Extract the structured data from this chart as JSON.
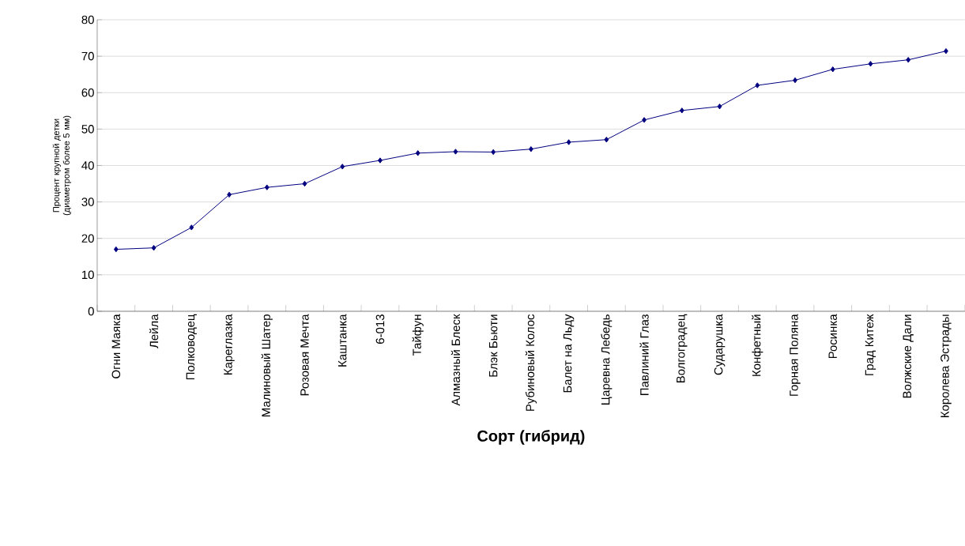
{
  "chart_data": {
    "type": "line",
    "xlabel": "Сорт (гибрид)",
    "ylabel": "Процент крупной детки (диаметром более 5 мм)",
    "categories": [
      "Огни Маяка",
      "Лейла",
      "Полководец",
      "Кареглазка",
      "Малиновый Шатер",
      "Розовая Мечта",
      "Каштанка",
      "6-013",
      "Тайфун",
      "Алмазный Блеск",
      "Блэк Бьюти",
      "Рубиновый Колос",
      "Балет на Льду",
      "Царевна Лебедь",
      "Павлиний Глаз",
      "Волгоградец",
      "Сударушка",
      "Конфетный",
      "Горная Поляна",
      "Росинка",
      "Град Китеж",
      "Волжские Дали",
      "Королева Эстрады"
    ],
    "values": [
      17,
      17.4,
      23,
      32,
      34,
      35,
      39.7,
      41.4,
      43.4,
      43.8,
      43.7,
      44.5,
      46.4,
      47.1,
      52.5,
      55.1,
      56.2,
      62,
      63.4,
      66.4,
      67.9,
      69,
      71.4
    ],
    "color": "#000080",
    "marker": "diamond",
    "line_style": "solid",
    "grid": "y",
    "ylim": [
      0,
      80
    ],
    "yticks": [
      0,
      10,
      20,
      30,
      40,
      50,
      60,
      70,
      80
    ]
  }
}
